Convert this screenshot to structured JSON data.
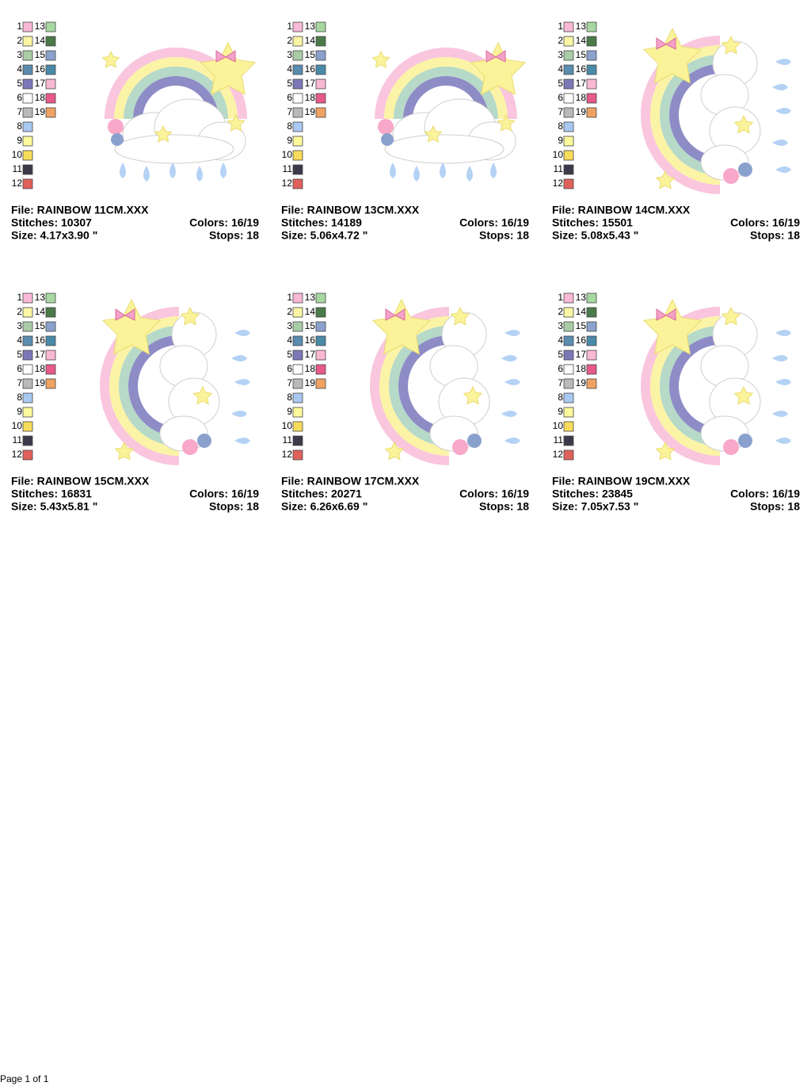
{
  "color_legend": [
    {
      "number": 1,
      "color": "#f9b8d6"
    },
    {
      "number": 2,
      "color": "#fbf6a4"
    },
    {
      "number": 3,
      "color": "#a9cca6"
    },
    {
      "number": 4,
      "color": "#5a8cb0"
    },
    {
      "number": 5,
      "color": "#7c78b8"
    },
    {
      "number": 6,
      "color": "#ffffff"
    },
    {
      "number": 7,
      "color": "#b9b9b9"
    },
    {
      "number": 8,
      "color": "#a9c9f2"
    },
    {
      "number": 9,
      "color": "#fdfa9c"
    },
    {
      "number": 10,
      "color": "#f7dc5a"
    },
    {
      "number": 11,
      "color": "#3b3a4a"
    },
    {
      "number": 12,
      "color": "#e0605c"
    },
    {
      "number": 13,
      "color": "#a6d8a0"
    },
    {
      "number": 14,
      "color": "#4b7a49"
    },
    {
      "number": 15,
      "color": "#8ba1cd"
    },
    {
      "number": 16,
      "color": "#4a8aa9"
    },
    {
      "number": 17,
      "color": "#f9b9d2"
    },
    {
      "number": 18,
      "color": "#e85a88"
    },
    {
      "number": 19,
      "color": "#f0a262"
    }
  ],
  "designs": [
    {
      "file": "File: RAINBOW 11CM.XXX",
      "stitches": "Stitches: 10307",
      "colors": "Colors: 16/19",
      "size": "Size: 4.17x3.90 \"",
      "stops": "Stops: 18"
    },
    {
      "file": "File: RAINBOW 13CM.XXX",
      "stitches": "Stitches: 14189",
      "colors": "Colors: 16/19",
      "size": "Size: 5.06x4.72 \"",
      "stops": "Stops: 18"
    },
    {
      "file": "File: RAINBOW 14CM.XXX",
      "stitches": "Stitches: 15501",
      "colors": "Colors: 16/19",
      "size": "Size: 5.08x5.43 \"",
      "stops": "Stops: 18"
    },
    {
      "file": "File: RAINBOW 15CM.XXX",
      "stitches": "Stitches: 16831",
      "colors": "Colors: 16/19",
      "size": "Size: 5.43x5.81 \"",
      "stops": "Stops: 18"
    },
    {
      "file": "File: RAINBOW 17CM.XXX",
      "stitches": "Stitches: 20271",
      "colors": "Colors: 16/19",
      "size": "Size: 6.26x6.69 \"",
      "stops": "Stops: 18"
    },
    {
      "file": "File: RAINBOW 19CM.XXX",
      "stitches": "Stitches: 23845",
      "colors": "Colors: 16/19",
      "size": "Size: 7.05x7.53 \"",
      "stops": "Stops: 18"
    }
  ],
  "footer": "Page 1 of 1"
}
